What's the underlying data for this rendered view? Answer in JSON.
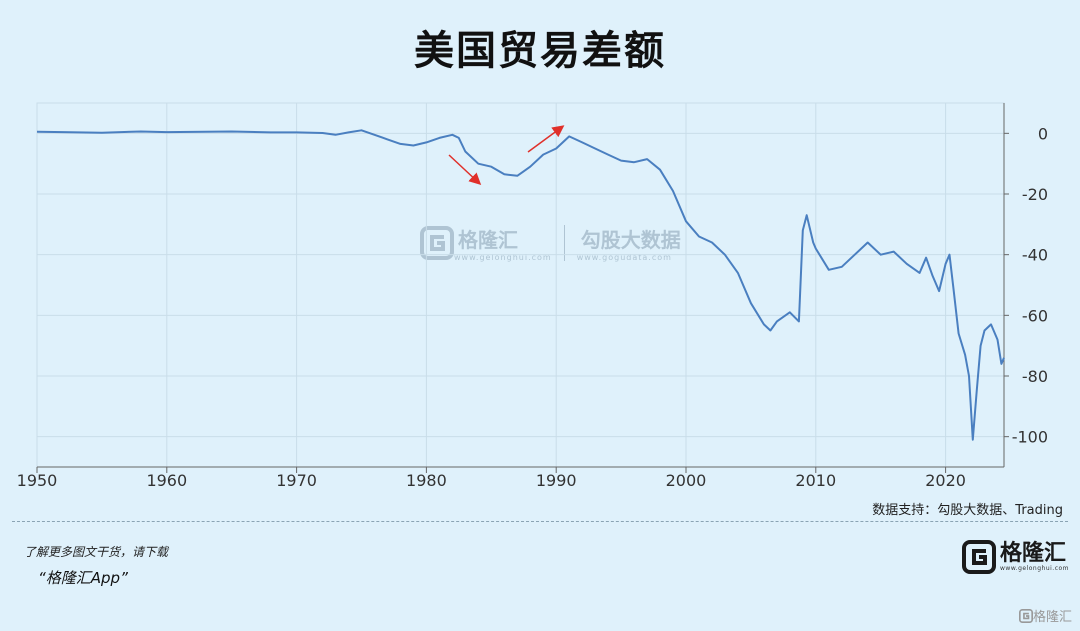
{
  "title": "美国贸易差额",
  "source_label": "数据支持：勾股大数据、Trading",
  "promo": {
    "line": "了解更多图文干货，请下载",
    "app": "“格隆汇App”"
  },
  "logo": {
    "name": "格隆汇",
    "url": "www.gelonghui.com"
  },
  "watermark": {
    "brand1": "格隆汇",
    "url1": "www.gelonghui.com",
    "brand2": "勾股大数据",
    "url2": "www.gogudata.com"
  },
  "corner_mark": "格隆汇",
  "colors": {
    "background": "#dff1fb",
    "line": "#4a7fc0",
    "arrow": "#e0302a",
    "grid": "#c9dde9"
  },
  "chart_data": {
    "type": "line",
    "title": "美国贸易差额",
    "xlabel": "",
    "ylabel": "",
    "xlim": [
      1950,
      2024.5
    ],
    "ylim": [
      -110,
      10
    ],
    "x_ticks": [
      1950,
      1960,
      1970,
      1980,
      1990,
      2000,
      2010,
      2020
    ],
    "y_ticks": [
      0,
      -20,
      -40,
      -60,
      -80,
      -100
    ],
    "y_axis_position": "right",
    "grid": true,
    "legend": "none",
    "series": [
      {
        "name": "",
        "points": [
          [
            1950,
            0.5
          ],
          [
            1952,
            0.4
          ],
          [
            1955,
            0.2
          ],
          [
            1958,
            0.6
          ],
          [
            1960,
            0.4
          ],
          [
            1963,
            0.5
          ],
          [
            1965,
            0.6
          ],
          [
            1968,
            0.3
          ],
          [
            1970,
            0.3
          ],
          [
            1972,
            0.1
          ],
          [
            1973,
            -0.5
          ],
          [
            1974,
            0.3
          ],
          [
            1975,
            1.0
          ],
          [
            1976,
            -0.5
          ],
          [
            1977,
            -2.0
          ],
          [
            1978,
            -3.5
          ],
          [
            1979,
            -4.0
          ],
          [
            1980,
            -3.0
          ],
          [
            1981,
            -1.5
          ],
          [
            1982,
            -0.5
          ],
          [
            1982.5,
            -1.5
          ],
          [
            1983,
            -6.0
          ],
          [
            1984,
            -10.0
          ],
          [
            1985,
            -11.0
          ],
          [
            1986,
            -13.5
          ],
          [
            1987,
            -14.0
          ],
          [
            1987.5,
            -12.5
          ],
          [
            1988,
            -11.0
          ],
          [
            1989,
            -7.0
          ],
          [
            1990,
            -5.0
          ],
          [
            1991,
            -1.0
          ],
          [
            1992,
            -3.0
          ],
          [
            1993,
            -5.0
          ],
          [
            1994,
            -7.0
          ],
          [
            1995,
            -9.0
          ],
          [
            1996,
            -9.5
          ],
          [
            1997,
            -8.5
          ],
          [
            1998,
            -12.0
          ],
          [
            1999,
            -19.0
          ],
          [
            2000,
            -29.0
          ],
          [
            2001,
            -34.0
          ],
          [
            2002,
            -36.0
          ],
          [
            2003,
            -40.0
          ],
          [
            2004,
            -46.0
          ],
          [
            2005,
            -56.0
          ],
          [
            2006,
            -63.0
          ],
          [
            2006.5,
            -65.0
          ],
          [
            2007,
            -62.0
          ],
          [
            2008,
            -59.0
          ],
          [
            2008.7,
            -62.0
          ],
          [
            2009,
            -32.0
          ],
          [
            2009.3,
            -27.0
          ],
          [
            2009.8,
            -36.0
          ],
          [
            2010,
            -38.0
          ],
          [
            2011,
            -45.0
          ],
          [
            2012,
            -44.0
          ],
          [
            2013,
            -40.0
          ],
          [
            2014,
            -36.0
          ],
          [
            2015,
            -40.0
          ],
          [
            2016,
            -39.0
          ],
          [
            2017,
            -43.0
          ],
          [
            2018,
            -46.0
          ],
          [
            2018.5,
            -41.0
          ],
          [
            2019,
            -47.0
          ],
          [
            2019.5,
            -52.0
          ],
          [
            2020,
            -43.0
          ],
          [
            2020.3,
            -40.0
          ],
          [
            2020.6,
            -51.0
          ],
          [
            2021,
            -66.0
          ],
          [
            2021.5,
            -73.0
          ],
          [
            2021.8,
            -80.0
          ],
          [
            2022.1,
            -101.0
          ],
          [
            2022.4,
            -85.0
          ],
          [
            2022.7,
            -70.0
          ],
          [
            2023,
            -65.0
          ],
          [
            2023.5,
            -63.0
          ],
          [
            2024,
            -68.0
          ],
          [
            2024.3,
            -76.0
          ],
          [
            2024.5,
            -74.0
          ]
        ]
      }
    ]
  }
}
